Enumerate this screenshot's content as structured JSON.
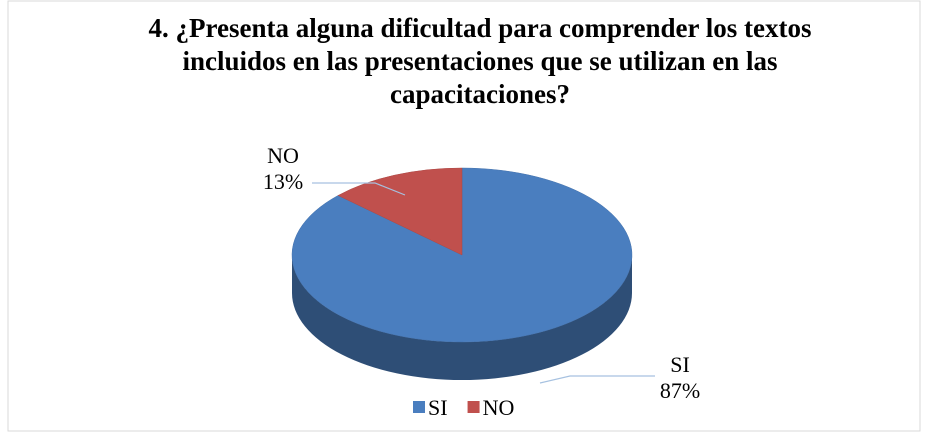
{
  "chart_data": {
    "type": "pie3d",
    "title": "4. ¿Presenta alguna dificultad para comprender los textos incluidos en las presentaciones que se utilizan en las capacitaciones?",
    "categories": [
      "SI",
      "NO"
    ],
    "values": [
      87,
      13
    ],
    "value_labels": [
      "87%",
      "13%"
    ],
    "colors": [
      "#4a7ebf",
      "#c0504d"
    ],
    "legend": "bottom"
  }
}
